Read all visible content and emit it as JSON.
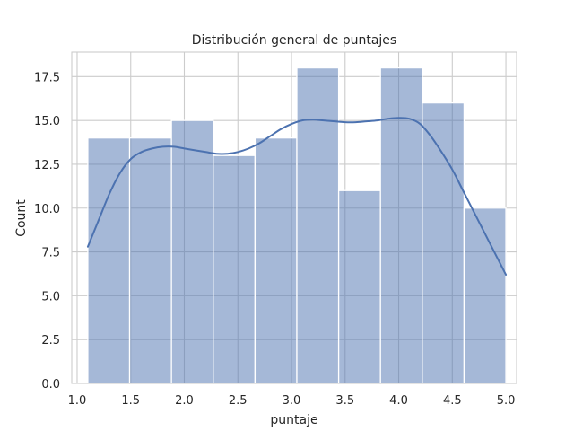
{
  "chart_data": {
    "type": "bar",
    "title": "Distribución general de puntajes",
    "xlabel": "puntaje",
    "ylabel": "Count",
    "xlim": [
      0.95,
      5.1
    ],
    "ylim": [
      0,
      18.9
    ],
    "xticks": [
      1.0,
      1.5,
      2.0,
      2.5,
      3.0,
      3.5,
      4.0,
      4.5,
      5.0
    ],
    "xtick_labels": [
      "1.0",
      "1.5",
      "2.0",
      "2.5",
      "3.0",
      "3.5",
      "4.0",
      "4.5",
      "5.0"
    ],
    "yticks": [
      0,
      2.5,
      5,
      7.5,
      10,
      12.5,
      15,
      17.5
    ],
    "ytick_labels": [
      "0.0",
      "2.5",
      "5.0",
      "7.5",
      "10.0",
      "12.5",
      "15.0",
      "17.5"
    ],
    "grid": true,
    "bins": [
      {
        "x0": 1.1,
        "x1": 1.49,
        "count": 14
      },
      {
        "x0": 1.49,
        "x1": 1.88,
        "count": 14
      },
      {
        "x0": 1.88,
        "x1": 2.27,
        "count": 15
      },
      {
        "x0": 2.27,
        "x1": 2.66,
        "count": 13
      },
      {
        "x0": 2.66,
        "x1": 3.05,
        "count": 14
      },
      {
        "x0": 3.05,
        "x1": 3.44,
        "count": 18
      },
      {
        "x0": 3.44,
        "x1": 3.83,
        "count": 11
      },
      {
        "x0": 3.83,
        "x1": 4.22,
        "count": 18
      },
      {
        "x0": 4.22,
        "x1": 4.61,
        "count": 16
      },
      {
        "x0": 4.61,
        "x1": 5.0,
        "count": 10
      }
    ],
    "kde": {
      "x": [
        1.1,
        1.2,
        1.3,
        1.4,
        1.5,
        1.6,
        1.7,
        1.8,
        1.9,
        2.0,
        2.1,
        2.2,
        2.3,
        2.4,
        2.5,
        2.6,
        2.7,
        2.8,
        2.9,
        3.0,
        3.1,
        3.2,
        3.3,
        3.4,
        3.5,
        3.6,
        3.7,
        3.8,
        3.9,
        4.0,
        4.1,
        4.2,
        4.3,
        4.4,
        4.5,
        4.6,
        4.7,
        4.8,
        4.9,
        5.0
      ],
      "y": [
        7.8,
        9.3,
        10.8,
        12.0,
        12.8,
        13.2,
        13.4,
        13.5,
        13.5,
        13.4,
        13.3,
        13.2,
        13.1,
        13.1,
        13.2,
        13.4,
        13.7,
        14.1,
        14.5,
        14.8,
        15.0,
        15.05,
        15.0,
        14.95,
        14.9,
        14.9,
        14.95,
        15.0,
        15.1,
        15.15,
        15.1,
        14.8,
        14.1,
        13.2,
        12.2,
        11.0,
        9.8,
        8.6,
        7.4,
        6.2
      ]
    },
    "colors": {
      "bar": "#4c72b0",
      "line": "#4c72b0",
      "grid": "#cccccc"
    }
  }
}
